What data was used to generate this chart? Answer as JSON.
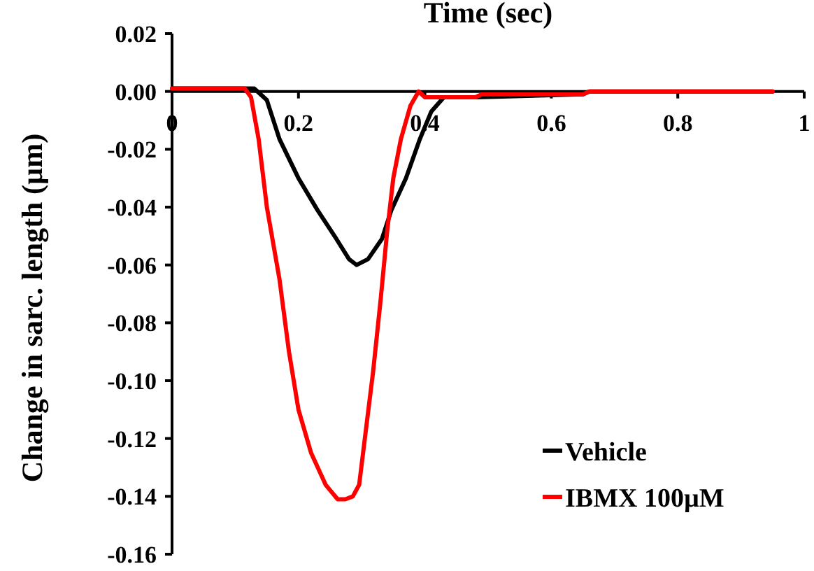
{
  "chart_data": {
    "type": "line",
    "xlabel": "Time (sec)",
    "ylabel": "Change in sarc. length (µm)",
    "xlim": [
      0,
      1
    ],
    "xticks": [
      0,
      0.2,
      0.4,
      0.6,
      0.8,
      1
    ],
    "ylim": [
      -0.16,
      0.02
    ],
    "yticks": [
      {
        "value": 0.02,
        "label": "0.02"
      },
      {
        "value": 0,
        "label": "0.00"
      },
      {
        "value": -0.02,
        "label": "-0.02"
      },
      {
        "value": -0.04,
        "label": "-0.04"
      },
      {
        "value": -0.06,
        "label": "-0.06"
      },
      {
        "value": -0.08,
        "label": "-0.08"
      },
      {
        "value": -0.1,
        "label": "-0.10"
      },
      {
        "value": -0.12,
        "label": "-0.12"
      },
      {
        "value": -0.14,
        "label": "-0.14"
      },
      {
        "value": -0.16,
        "label": "-0.16"
      }
    ],
    "legend": "bottom right",
    "marker": "none",
    "line_style": "solid",
    "series": [
      {
        "name": "Vehicle",
        "color": "#000000",
        "x": [
          0,
          0.13,
          0.15,
          0.17,
          0.2,
          0.23,
          0.26,
          0.28,
          0.292,
          0.31,
          0.332,
          0.347,
          0.37,
          0.392,
          0.41,
          0.43,
          0.48,
          0.65,
          0.66,
          0.95
        ],
        "values": [
          0.001,
          0.001,
          -0.003,
          -0.0165,
          -0.03,
          -0.041,
          -0.051,
          -0.058,
          -0.06,
          -0.058,
          -0.051,
          -0.041,
          -0.03,
          -0.0165,
          -0.007,
          -0.002,
          -0.002,
          -0.001,
          0,
          0
        ]
      },
      {
        "name": "IBMX 100µM",
        "color": "#ff0000",
        "x": [
          0,
          0.115,
          0.125,
          0.137,
          0.15,
          0.17,
          0.185,
          0.2,
          0.22,
          0.243,
          0.262,
          0.274,
          0.286,
          0.296,
          0.305,
          0.318,
          0.33,
          0.34,
          0.35,
          0.362,
          0.377,
          0.39,
          0.4,
          0.48,
          0.49,
          0.65,
          0.66,
          0.95
        ],
        "values": [
          0.001,
          0.001,
          -0.002,
          -0.0165,
          -0.04,
          -0.065,
          -0.09,
          -0.11,
          -0.125,
          -0.136,
          -0.141,
          -0.141,
          -0.14,
          -0.136,
          -0.12,
          -0.097,
          -0.072,
          -0.049,
          -0.03,
          -0.0165,
          -0.005,
          0,
          -0.002,
          -0.002,
          -0.001,
          -0.001,
          0,
          0
        ]
      }
    ]
  }
}
